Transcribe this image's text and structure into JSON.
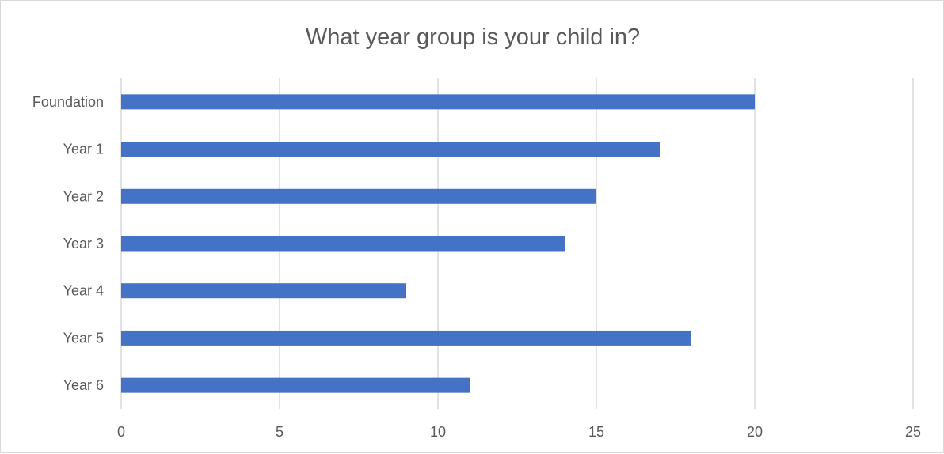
{
  "chart_data": {
    "type": "bar",
    "orientation": "horizontal",
    "title": "What year group is your child in?",
    "categories": [
      "Foundation",
      "Year 1",
      "Year 2",
      "Year 3",
      "Year 4",
      "Year 5",
      "Year 6"
    ],
    "values": [
      20,
      17,
      15,
      14,
      9,
      18,
      11
    ],
    "xlim": [
      0,
      25
    ],
    "x_ticks": [
      "0",
      "5",
      "10",
      "15",
      "20",
      "25"
    ],
    "grid": "vertical",
    "legend": "none",
    "bar_color": "#4472C4"
  }
}
